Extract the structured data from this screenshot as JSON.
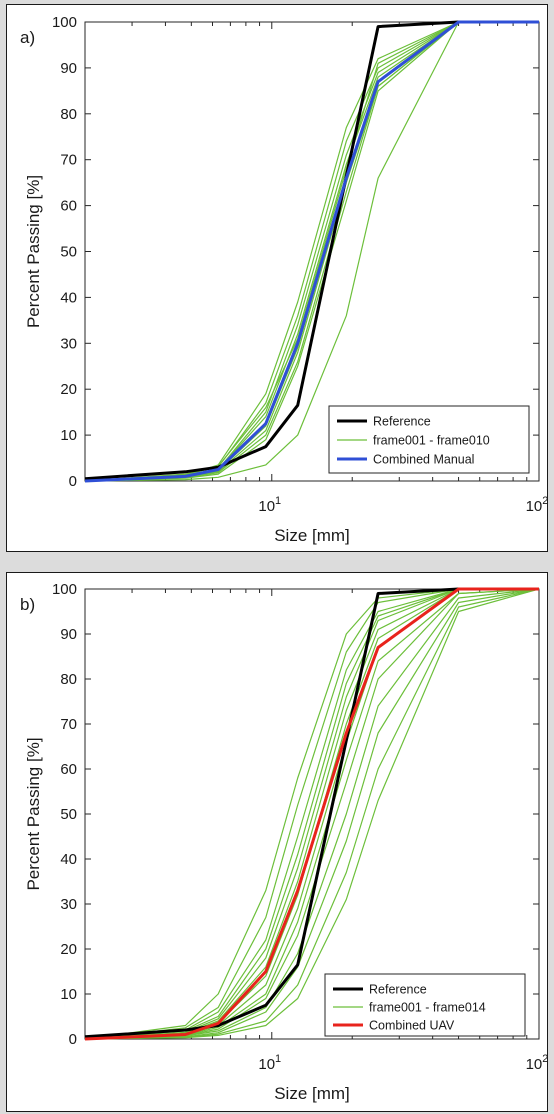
{
  "chart_data": [
    {
      "type": "line",
      "panel_label": "a)",
      "xlabel": "Size [mm]",
      "ylabel": "Percent Passing [%]",
      "xscale": "log",
      "xlim": [
        2,
        100
      ],
      "ylim": [
        0,
        100
      ],
      "x_tick_labels": [
        {
          "base": "10",
          "exp": "1",
          "value": 10
        },
        {
          "base": "10",
          "exp": "2",
          "value": 100
        }
      ],
      "y_ticks": [
        0,
        10,
        20,
        30,
        40,
        50,
        60,
        70,
        80,
        90,
        100
      ],
      "grid": false,
      "legend_position": "bottom-right",
      "series": [
        {
          "name": "Reference",
          "color": "#000000",
          "x": [
            2,
            4.75,
            6.3,
            9.5,
            12.5,
            25,
            50,
            100
          ],
          "y": [
            0.5,
            2,
            3,
            7.5,
            16.5,
            99,
            100,
            100
          ]
        },
        {
          "name": "frame001 - frame010",
          "color": "#6cbf3a",
          "x": [
            2,
            4.75,
            6.3,
            9.5,
            12.5,
            19,
            25,
            50,
            100
          ],
          "y": [
            0,
            1,
            2.5,
            14,
            32,
            69,
            88,
            100,
            100
          ]
        },
        {
          "name": "",
          "color": "#6cbf3a",
          "x": [
            2,
            4.75,
            6.3,
            9.5,
            12.5,
            19,
            25,
            50,
            100
          ],
          "y": [
            0,
            1.5,
            3,
            17,
            36,
            74,
            90,
            100,
            100
          ]
        },
        {
          "name": "",
          "color": "#6cbf3a",
          "x": [
            2,
            4.75,
            6.3,
            9.5,
            12.5,
            19,
            25,
            50,
            100
          ],
          "y": [
            0,
            1.2,
            3.5,
            19,
            39,
            77,
            92,
            100,
            100
          ]
        },
        {
          "name": "",
          "color": "#6cbf3a",
          "x": [
            2,
            4.75,
            6.3,
            9.5,
            12.5,
            19,
            25,
            50,
            100
          ],
          "y": [
            0,
            0.8,
            2,
            11,
            28,
            65,
            86,
            100,
            100
          ]
        },
        {
          "name": "",
          "color": "#6cbf3a",
          "x": [
            2,
            4.75,
            6.3,
            9.5,
            12.5,
            19,
            25,
            50,
            100
          ],
          "y": [
            0,
            0.6,
            1.5,
            9,
            25,
            61,
            85,
            100,
            100
          ]
        },
        {
          "name": "",
          "color": "#6cbf3a",
          "x": [
            2,
            4.75,
            6.3,
            9.5,
            12.5,
            19,
            25,
            50,
            100
          ],
          "y": [
            0,
            1,
            2.5,
            15,
            34,
            71,
            89,
            100,
            100
          ]
        },
        {
          "name": "",
          "color": "#6cbf3a",
          "x": [
            2,
            4.75,
            6.3,
            9.5,
            12.5,
            19,
            25,
            50,
            100
          ],
          "y": [
            0,
            1.3,
            3.2,
            16,
            31,
            68,
            91,
            100,
            100
          ]
        },
        {
          "name": "",
          "color": "#6cbf3a",
          "x": [
            2,
            4.75,
            6.3,
            9.5,
            12.5,
            19,
            25,
            50,
            100
          ],
          "y": [
            0,
            0.9,
            2.2,
            12,
            29,
            66,
            87,
            100,
            100
          ]
        },
        {
          "name": "",
          "color": "#6cbf3a",
          "x": [
            2,
            4.75,
            6.3,
            9.5,
            12.5,
            19,
            25,
            50,
            100
          ],
          "y": [
            0,
            0.7,
            1.8,
            10,
            26,
            63,
            86,
            100,
            100
          ]
        },
        {
          "name": "",
          "color": "#6cbf3a",
          "x": [
            2,
            4.75,
            6.3,
            9.5,
            12.5,
            19,
            25,
            50,
            100
          ],
          "y": [
            0,
            0.3,
            0.8,
            3.5,
            10,
            36,
            66,
            100,
            100
          ]
        },
        {
          "name": "Combined Manual",
          "color": "#2f4fd6",
          "x": [
            2,
            4.75,
            6.3,
            9.5,
            12.5,
            19,
            25,
            50,
            100
          ],
          "y": [
            0,
            1,
            2.5,
            12.5,
            30,
            66,
            87,
            100,
            100
          ]
        }
      ]
    },
    {
      "type": "line",
      "panel_label": "b)",
      "xlabel": "Size [mm]",
      "ylabel": "Percent Passing [%]",
      "xscale": "log",
      "xlim": [
        2,
        100
      ],
      "ylim": [
        0,
        100
      ],
      "x_tick_labels": [
        {
          "base": "10",
          "exp": "1",
          "value": 10
        },
        {
          "base": "10",
          "exp": "2",
          "value": 100
        }
      ],
      "y_ticks": [
        0,
        10,
        20,
        30,
        40,
        50,
        60,
        70,
        80,
        90,
        100
      ],
      "grid": false,
      "legend_position": "bottom-right",
      "series": [
        {
          "name": "Reference",
          "color": "#000000",
          "x": [
            2,
            4.75,
            6.3,
            9.5,
            12.5,
            25,
            50,
            100
          ],
          "y": [
            0.5,
            2,
            3,
            7.5,
            16.5,
            99,
            100,
            100
          ]
        },
        {
          "name": "frame001 - frame014",
          "color": "#6cbf3a",
          "x": [
            2,
            4.75,
            6.3,
            9.5,
            12.5,
            19,
            25,
            50,
            100
          ],
          "y": [
            0,
            3,
            10,
            33,
            58,
            90,
            98,
            100,
            100
          ]
        },
        {
          "name": "",
          "color": "#6cbf3a",
          "x": [
            2,
            4.75,
            6.3,
            9.5,
            12.5,
            19,
            25,
            50,
            100
          ],
          "y": [
            0,
            2.5,
            7,
            27,
            52,
            86,
            97,
            100,
            100
          ]
        },
        {
          "name": "",
          "color": "#6cbf3a",
          "x": [
            2,
            4.75,
            6.3,
            9.5,
            12.5,
            19,
            25,
            50,
            100
          ],
          "y": [
            0,
            2,
            6,
            22,
            45,
            82,
            95,
            100,
            100
          ]
        },
        {
          "name": "",
          "color": "#6cbf3a",
          "x": [
            2,
            4.75,
            6.3,
            9.5,
            12.5,
            19,
            25,
            50,
            100
          ],
          "y": [
            0,
            1.8,
            5,
            20,
            41,
            79,
            94,
            100,
            100
          ]
        },
        {
          "name": "",
          "color": "#6cbf3a",
          "x": [
            2,
            4.75,
            6.3,
            9.5,
            12.5,
            19,
            25,
            50,
            100
          ],
          "y": [
            0,
            1.5,
            4.5,
            18,
            38,
            76,
            93,
            100,
            100
          ]
        },
        {
          "name": "",
          "color": "#6cbf3a",
          "x": [
            2,
            4.75,
            6.3,
            9.5,
            12.5,
            19,
            25,
            50,
            100
          ],
          "y": [
            0,
            1.3,
            4,
            16,
            35,
            73,
            91,
            100,
            100
          ]
        },
        {
          "name": "",
          "color": "#6cbf3a",
          "x": [
            2,
            4.75,
            6.3,
            9.5,
            12.5,
            19,
            25,
            50,
            100
          ],
          "y": [
            0,
            1.2,
            3.5,
            14,
            32,
            70,
            89,
            100,
            100
          ]
        },
        {
          "name": "",
          "color": "#6cbf3a",
          "x": [
            2,
            4.75,
            6.3,
            9.5,
            12.5,
            19,
            25,
            50,
            100
          ],
          "y": [
            0,
            1,
            3,
            12,
            29,
            66,
            87,
            100,
            100
          ]
        },
        {
          "name": "",
          "color": "#6cbf3a",
          "x": [
            2,
            4.75,
            6.3,
            9.5,
            12.5,
            19,
            25,
            50,
            100
          ],
          "y": [
            0,
            0.9,
            2.6,
            10,
            26,
            62,
            84,
            99,
            100
          ]
        },
        {
          "name": "",
          "color": "#6cbf3a",
          "x": [
            2,
            4.75,
            6.3,
            9.5,
            12.5,
            19,
            25,
            50,
            100
          ],
          "y": [
            0,
            0.8,
            2.2,
            9,
            23,
            57,
            80,
            99,
            100
          ]
        },
        {
          "name": "",
          "color": "#6cbf3a",
          "x": [
            2,
            4.75,
            6.3,
            9.5,
            12.5,
            19,
            25,
            50,
            100
          ],
          "y": [
            0,
            0.7,
            1.8,
            7,
            19,
            50,
            74,
            98,
            100
          ]
        },
        {
          "name": "",
          "color": "#6cbf3a",
          "x": [
            2,
            4.75,
            6.3,
            9.5,
            12.5,
            19,
            25,
            50,
            100
          ],
          "y": [
            0,
            0.5,
            1.4,
            6,
            16,
            44,
            68,
            97,
            100
          ]
        },
        {
          "name": "",
          "color": "#6cbf3a",
          "x": [
            2,
            4.75,
            6.3,
            9.5,
            12.5,
            19,
            25,
            50,
            100
          ],
          "y": [
            0,
            0.4,
            1.1,
            4,
            12,
            37,
            60,
            96,
            100
          ]
        },
        {
          "name": "",
          "color": "#6cbf3a",
          "x": [
            2,
            4.75,
            6.3,
            9.5,
            12.5,
            19,
            25,
            50,
            100
          ],
          "y": [
            0,
            0.3,
            0.8,
            3,
            9,
            31,
            53,
            95,
            100
          ]
        },
        {
          "name": "Combined UAV",
          "color": "#e8231c",
          "x": [
            2,
            4.75,
            6.3,
            9.5,
            12.5,
            19,
            25,
            50,
            100
          ],
          "y": [
            0,
            1,
            3.5,
            15,
            33,
            68,
            87,
            100,
            100
          ]
        }
      ]
    }
  ]
}
